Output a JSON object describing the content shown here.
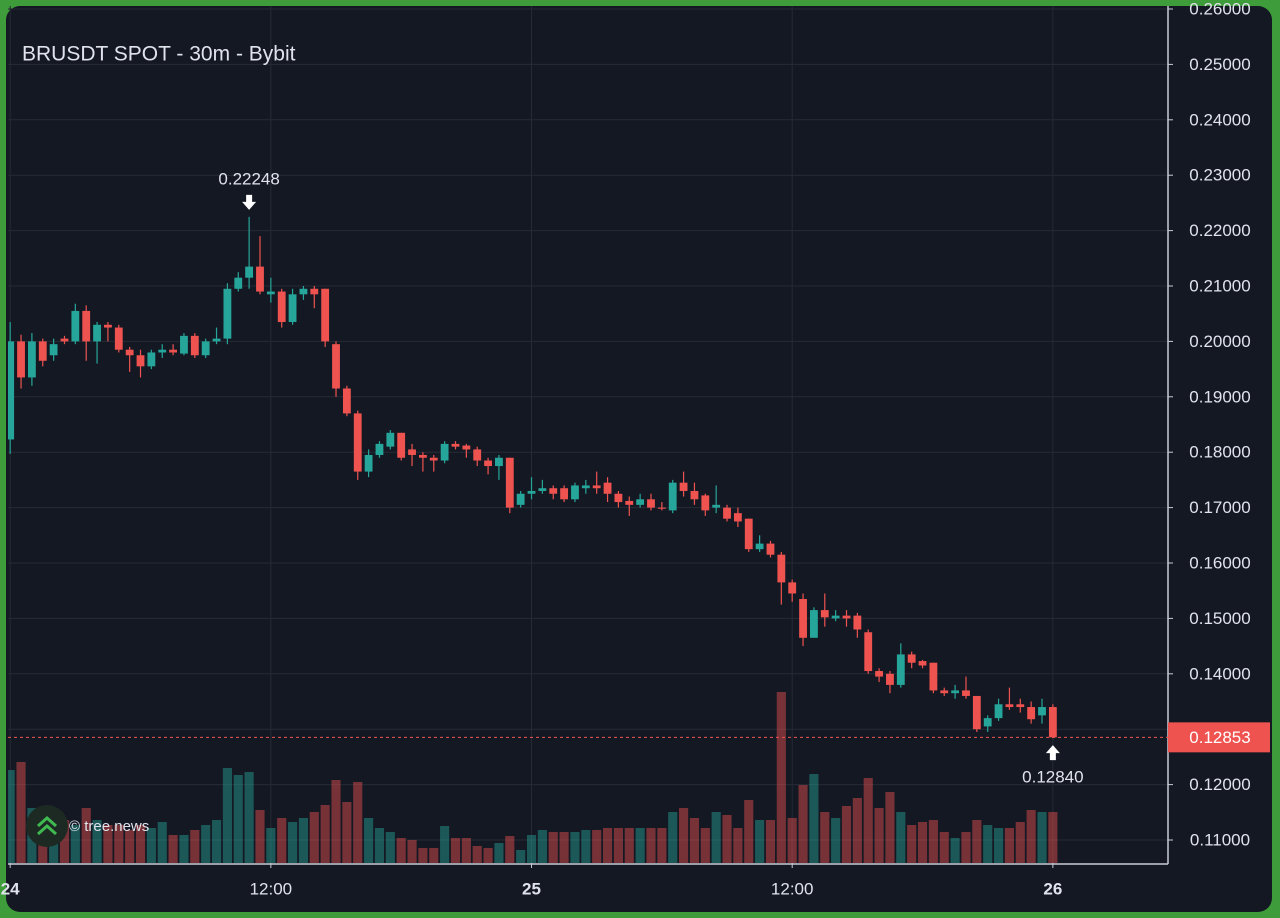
{
  "chart_data": {
    "type": "candlestick",
    "title": "BRUSDT SPOT - 30m - Bybit",
    "watermark": "© tree.news",
    "up_color": "#26a69a",
    "down_color": "#ef5350",
    "grid": true,
    "ylim": [
      0.10585,
      0.26018
    ],
    "yticks": [
      {
        "value": 0.11,
        "label": "0.11000"
      },
      {
        "value": 0.12,
        "label": "0.12000"
      },
      {
        "value": 0.13,
        "label": "0.13000"
      },
      {
        "value": 0.14,
        "label": "0.14000"
      },
      {
        "value": 0.15,
        "label": "0.15000"
      },
      {
        "value": 0.16,
        "label": "0.16000"
      },
      {
        "value": 0.17,
        "label": "0.17000"
      },
      {
        "value": 0.18,
        "label": "0.18000"
      },
      {
        "value": 0.19,
        "label": "0.19000"
      },
      {
        "value": 0.2,
        "label": "0.20000"
      },
      {
        "value": 0.21,
        "label": "0.21000"
      },
      {
        "value": 0.22,
        "label": "0.22000"
      },
      {
        "value": 0.23,
        "label": "0.23000"
      },
      {
        "value": 0.24,
        "label": "0.24000"
      },
      {
        "value": 0.25,
        "label": "0.25000"
      },
      {
        "value": 0.26,
        "label": "0.26000"
      }
    ],
    "xlim": [
      -0.2,
      106.6
    ],
    "xticks": [
      {
        "value": 0,
        "label": "24"
      },
      {
        "value": 24,
        "label": "12:00"
      },
      {
        "value": 48,
        "label": "25"
      },
      {
        "value": 72,
        "label": "12:00"
      },
      {
        "value": 96,
        "label": "26"
      }
    ],
    "annotations": [
      {
        "label": "0.22248",
        "value": 0.22248
      },
      {
        "label": "0.12840",
        "value": 0.1284
      }
    ],
    "open": [
      0.1823,
      0.2,
      0.1935,
      0.2,
      0.1975,
      0.2005,
      0.2,
      0.2055,
      0.2,
      0.203,
      0.2025,
      0.1985,
      0.1975,
      0.1955,
      0.198,
      0.1985,
      0.1978,
      0.201,
      0.1975,
      0.2,
      0.2005,
      0.2095,
      0.2115,
      0.2135,
      0.2085,
      0.209,
      0.2035,
      0.2085,
      0.2095,
      0.2095,
      0.1995,
      0.1915,
      0.187,
      0.1765,
      0.1795,
      0.181,
      0.1835,
      0.1805,
      0.1795,
      0.179,
      0.1785,
      0.1815,
      0.1812,
      0.1805,
      0.1785,
      0.1775,
      0.179,
      0.1705,
      0.1725,
      0.173,
      0.1735,
      0.1735,
      0.1715,
      0.1735,
      0.174,
      0.1745,
      0.1725,
      0.1712,
      0.1705,
      0.1715,
      0.17,
      0.1695,
      0.1745,
      0.173,
      0.1722,
      0.17,
      0.17,
      0.169,
      0.168,
      0.1625,
      0.1635,
      0.1615,
      0.1565,
      0.1535,
      0.1465,
      0.1515,
      0.15,
      0.1505,
      0.1505,
      0.1475,
      0.1405,
      0.14,
      0.138,
      0.1435,
      0.1423,
      0.142,
      0.137,
      0.1365,
      0.137,
      0.136,
      0.1305,
      0.132,
      0.1345,
      0.1345,
      0.134,
      0.1325,
      0.134
    ],
    "high": [
      0.2035,
      0.2012,
      0.2015,
      0.2005,
      0.2005,
      0.201,
      0.2068,
      0.2065,
      0.2035,
      0.2035,
      0.203,
      0.199,
      0.1985,
      0.1985,
      0.1995,
      0.1995,
      0.2015,
      0.2015,
      0.2005,
      0.2025,
      0.2105,
      0.2125,
      0.22248,
      0.219,
      0.2115,
      0.2095,
      0.2095,
      0.21,
      0.21,
      0.2095,
      0.2,
      0.192,
      0.1875,
      0.1805,
      0.182,
      0.184,
      0.1835,
      0.1815,
      0.18,
      0.1795,
      0.182,
      0.182,
      0.1815,
      0.181,
      0.179,
      0.1795,
      0.179,
      0.173,
      0.1755,
      0.175,
      0.174,
      0.174,
      0.1745,
      0.175,
      0.1765,
      0.1755,
      0.173,
      0.172,
      0.1725,
      0.1725,
      0.171,
      0.175,
      0.1765,
      0.1745,
      0.1725,
      0.174,
      0.1705,
      0.17,
      0.168,
      0.165,
      0.164,
      0.162,
      0.157,
      0.1545,
      0.152,
      0.1545,
      0.1515,
      0.1515,
      0.151,
      0.148,
      0.141,
      0.1405,
      0.1455,
      0.144,
      0.1425,
      0.142,
      0.1375,
      0.138,
      0.1395,
      0.136,
      0.1325,
      0.1355,
      0.1375,
      0.1355,
      0.135,
      0.1355,
      0.1345
    ],
    "low": [
      0.1797,
      0.1915,
      0.192,
      0.1955,
      0.1965,
      0.1995,
      0.1995,
      0.1965,
      0.196,
      0.2,
      0.198,
      0.1945,
      0.1935,
      0.195,
      0.197,
      0.1975,
      0.1975,
      0.197,
      0.197,
      0.1995,
      0.1995,
      0.209,
      0.2095,
      0.2085,
      0.207,
      0.2025,
      0.203,
      0.2075,
      0.206,
      0.199,
      0.19,
      0.1865,
      0.175,
      0.1755,
      0.179,
      0.1805,
      0.1785,
      0.1775,
      0.1765,
      0.1765,
      0.178,
      0.1805,
      0.179,
      0.1775,
      0.176,
      0.175,
      0.169,
      0.17,
      0.1715,
      0.1725,
      0.1715,
      0.171,
      0.171,
      0.1725,
      0.1725,
      0.171,
      0.17,
      0.1685,
      0.17,
      0.1695,
      0.1695,
      0.169,
      0.172,
      0.1705,
      0.1685,
      0.169,
      0.1675,
      0.1665,
      0.162,
      0.162,
      0.161,
      0.1525,
      0.153,
      0.145,
      0.1465,
      0.1485,
      0.1495,
      0.1485,
      0.1465,
      0.14,
      0.1385,
      0.1365,
      0.1375,
      0.141,
      0.141,
      0.1365,
      0.136,
      0.1355,
      0.1355,
      0.1295,
      0.1295,
      0.1315,
      0.1335,
      0.133,
      0.131,
      0.131,
      0.1284
    ],
    "close": [
      0.2,
      0.1935,
      0.2,
      0.1965,
      0.1995,
      0.2,
      0.2055,
      0.2,
      0.203,
      0.2025,
      0.1985,
      0.1975,
      0.1955,
      0.198,
      0.1985,
      0.198,
      0.201,
      0.1975,
      0.2,
      0.2005,
      0.2095,
      0.2115,
      0.2135,
      0.209,
      0.209,
      0.2035,
      0.2085,
      0.2095,
      0.2085,
      0.2,
      0.1915,
      0.187,
      0.1765,
      0.1795,
      0.1815,
      0.1835,
      0.179,
      0.1795,
      0.179,
      0.1785,
      0.1815,
      0.181,
      0.1805,
      0.1785,
      0.1775,
      0.179,
      0.17,
      0.1725,
      0.173,
      0.1735,
      0.1725,
      0.1715,
      0.174,
      0.174,
      0.1735,
      0.1725,
      0.171,
      0.1705,
      0.1715,
      0.17,
      0.1698,
      0.1745,
      0.173,
      0.1715,
      0.1695,
      0.1705,
      0.168,
      0.1675,
      0.1625,
      0.1635,
      0.1615,
      0.1565,
      0.1545,
      0.1465,
      0.1515,
      0.1502,
      0.1505,
      0.15,
      0.148,
      0.1405,
      0.1395,
      0.138,
      0.1435,
      0.142,
      0.1415,
      0.137,
      0.1365,
      0.137,
      0.136,
      0.13,
      0.132,
      0.1345,
      0.134,
      0.134,
      0.1318,
      0.134,
      0.12853
    ],
    "volume": [
      93,
      101,
      55,
      51,
      43,
      43,
      38,
      55,
      43,
      38,
      38,
      33,
      38,
      35,
      41,
      28,
      28,
      33,
      38,
      43,
      95,
      88,
      91,
      53,
      35,
      45,
      41,
      45,
      51,
      58,
      83,
      61,
      81,
      45,
      35,
      31,
      25,
      23,
      15,
      15,
      37,
      25,
      25,
      17,
      15,
      20,
      27,
      13,
      28,
      33,
      31,
      31,
      31,
      33,
      33,
      35,
      35,
      35,
      35,
      35,
      35,
      51,
      55,
      45,
      35,
      51,
      48,
      35,
      63,
      43,
      43,
      171,
      45,
      78,
      89,
      51,
      45,
      57,
      65,
      85,
      55,
      71,
      51,
      38,
      41,
      43,
      31,
      25,
      31,
      43,
      38,
      35,
      35,
      41,
      53,
      51,
      51
    ]
  }
}
